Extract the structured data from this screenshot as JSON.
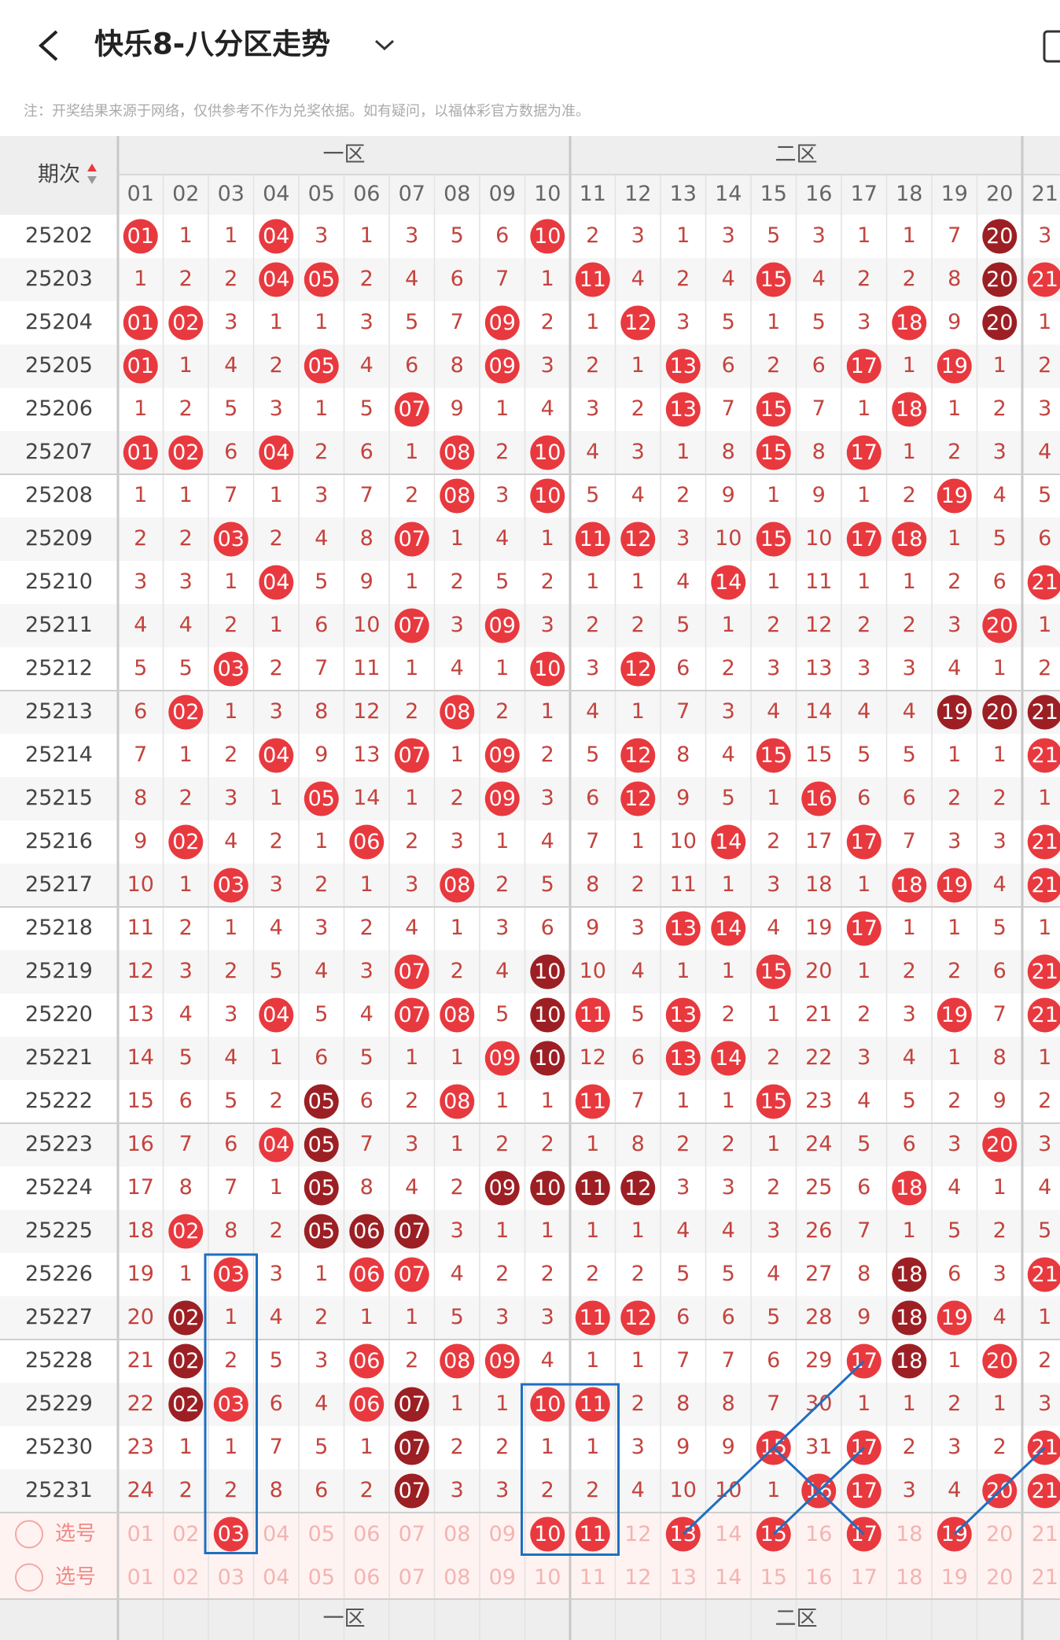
{
  "header": {
    "title": "快乐8-八分区走势",
    "note": "注：开奖结果来源于网络，仅供参考不作为兑奖依据。如有疑问，以福体彩官方数据为准。"
  },
  "table": {
    "issue_header": "期次",
    "zones": [
      "一区",
      "二区"
    ],
    "columns": [
      "01",
      "02",
      "03",
      "04",
      "05",
      "06",
      "07",
      "08",
      "09",
      "10",
      "11",
      "12",
      "13",
      "14",
      "15",
      "16",
      "17",
      "18",
      "19",
      "20",
      "21"
    ],
    "rows": [
      {
        "issue": "25202",
        "cells": [
          "01",
          "1",
          "1",
          "04",
          "3",
          "1",
          "3",
          "5",
          "6",
          "10",
          "2",
          "3",
          "1",
          "3",
          "5",
          "3",
          "1",
          "1",
          "7",
          "20",
          "3"
        ]
      },
      {
        "issue": "25203",
        "cells": [
          "1",
          "2",
          "2",
          "04",
          "05",
          "2",
          "4",
          "6",
          "7",
          "1",
          "11",
          "4",
          "2",
          "4",
          "15",
          "4",
          "2",
          "2",
          "8",
          "20",
          "21"
        ]
      },
      {
        "issue": "25204",
        "cells": [
          "01",
          "02",
          "3",
          "1",
          "1",
          "3",
          "5",
          "7",
          "09",
          "2",
          "1",
          "12",
          "3",
          "5",
          "1",
          "5",
          "3",
          "18",
          "9",
          "20",
          "1"
        ]
      },
      {
        "issue": "25205",
        "cells": [
          "01",
          "1",
          "4",
          "2",
          "05",
          "4",
          "6",
          "8",
          "09",
          "3",
          "2",
          "1",
          "13",
          "6",
          "2",
          "6",
          "17",
          "1",
          "19",
          "1",
          "2"
        ]
      },
      {
        "issue": "25206",
        "cells": [
          "1",
          "2",
          "5",
          "3",
          "1",
          "5",
          "07",
          "9",
          "1",
          "4",
          "3",
          "2",
          "13",
          "7",
          "15",
          "7",
          "1",
          "18",
          "1",
          "2",
          "3"
        ]
      },
      {
        "issue": "25207",
        "cells": [
          "01",
          "02",
          "6",
          "04",
          "2",
          "6",
          "1",
          "08",
          "2",
          "10",
          "4",
          "3",
          "1",
          "8",
          "15",
          "8",
          "17",
          "1",
          "2",
          "3",
          "4"
        ]
      },
      {
        "issue": "25208",
        "cells": [
          "1",
          "1",
          "7",
          "1",
          "3",
          "7",
          "2",
          "08",
          "3",
          "10",
          "5",
          "4",
          "2",
          "9",
          "1",
          "9",
          "1",
          "2",
          "19",
          "4",
          "5"
        ]
      },
      {
        "issue": "25209",
        "cells": [
          "2",
          "2",
          "03",
          "2",
          "4",
          "8",
          "07",
          "1",
          "4",
          "1",
          "11",
          "12",
          "3",
          "10",
          "15",
          "10",
          "17",
          "18",
          "1",
          "5",
          "6"
        ]
      },
      {
        "issue": "25210",
        "cells": [
          "3",
          "3",
          "1",
          "04",
          "5",
          "9",
          "1",
          "2",
          "5",
          "2",
          "1",
          "1",
          "4",
          "14",
          "1",
          "11",
          "1",
          "1",
          "2",
          "6",
          "21"
        ]
      },
      {
        "issue": "25211",
        "cells": [
          "4",
          "4",
          "2",
          "1",
          "6",
          "10",
          "07",
          "3",
          "09",
          "3",
          "2",
          "2",
          "5",
          "1",
          "2",
          "12",
          "2",
          "2",
          "3",
          "20",
          "1"
        ]
      },
      {
        "issue": "25212",
        "cells": [
          "5",
          "5",
          "03",
          "2",
          "7",
          "11",
          "1",
          "4",
          "1",
          "10",
          "3",
          "12",
          "6",
          "2",
          "3",
          "13",
          "3",
          "3",
          "4",
          "1",
          "2"
        ]
      },
      {
        "issue": "25213",
        "cells": [
          "6",
          "02",
          "1",
          "3",
          "8",
          "12",
          "2",
          "08",
          "2",
          "1",
          "4",
          "1",
          "7",
          "3",
          "4",
          "14",
          "4",
          "4",
          "19",
          "20",
          "21"
        ]
      },
      {
        "issue": "25214",
        "cells": [
          "7",
          "1",
          "2",
          "04",
          "9",
          "13",
          "07",
          "1",
          "09",
          "2",
          "5",
          "12",
          "8",
          "4",
          "15",
          "15",
          "5",
          "5",
          "1",
          "1",
          "21"
        ]
      },
      {
        "issue": "25215",
        "cells": [
          "8",
          "2",
          "3",
          "1",
          "05",
          "14",
          "1",
          "2",
          "09",
          "3",
          "6",
          "12",
          "9",
          "5",
          "1",
          "16",
          "6",
          "6",
          "2",
          "2",
          "1"
        ]
      },
      {
        "issue": "25216",
        "cells": [
          "9",
          "02",
          "4",
          "2",
          "1",
          "06",
          "2",
          "3",
          "1",
          "4",
          "7",
          "1",
          "10",
          "14",
          "2",
          "17",
          "17",
          "7",
          "3",
          "3",
          "21"
        ]
      },
      {
        "issue": "25217",
        "cells": [
          "10",
          "1",
          "03",
          "3",
          "2",
          "1",
          "3",
          "08",
          "2",
          "5",
          "8",
          "2",
          "11",
          "1",
          "3",
          "18",
          "1",
          "18",
          "19",
          "4",
          "21"
        ]
      },
      {
        "issue": "25218",
        "cells": [
          "11",
          "2",
          "1",
          "4",
          "3",
          "2",
          "4",
          "1",
          "3",
          "6",
          "9",
          "3",
          "13",
          "14",
          "4",
          "19",
          "17",
          "1",
          "1",
          "5",
          "1"
        ]
      },
      {
        "issue": "25219",
        "cells": [
          "12",
          "3",
          "2",
          "5",
          "4",
          "3",
          "07",
          "2",
          "4",
          "10",
          "10",
          "4",
          "1",
          "1",
          "15",
          "20",
          "1",
          "2",
          "2",
          "6",
          "21"
        ]
      },
      {
        "issue": "25220",
        "cells": [
          "13",
          "4",
          "3",
          "04",
          "5",
          "4",
          "07",
          "08",
          "5",
          "10",
          "11",
          "5",
          "13",
          "2",
          "1",
          "21",
          "2",
          "3",
          "19",
          "7",
          "21"
        ]
      },
      {
        "issue": "25221",
        "cells": [
          "14",
          "5",
          "4",
          "1",
          "6",
          "5",
          "1",
          "1",
          "09",
          "10",
          "12",
          "6",
          "13",
          "14",
          "2",
          "22",
          "3",
          "4",
          "1",
          "8",
          "1"
        ]
      },
      {
        "issue": "25222",
        "cells": [
          "15",
          "6",
          "5",
          "2",
          "05",
          "6",
          "2",
          "08",
          "1",
          "1",
          "11",
          "7",
          "1",
          "1",
          "15",
          "23",
          "4",
          "5",
          "2",
          "9",
          "2"
        ]
      },
      {
        "issue": "25223",
        "cells": [
          "16",
          "7",
          "6",
          "04",
          "05",
          "7",
          "3",
          "1",
          "2",
          "2",
          "1",
          "8",
          "2",
          "2",
          "1",
          "24",
          "5",
          "6",
          "3",
          "20",
          "3"
        ]
      },
      {
        "issue": "25224",
        "cells": [
          "17",
          "8",
          "7",
          "1",
          "05",
          "8",
          "4",
          "2",
          "09",
          "10",
          "11",
          "12",
          "3",
          "3",
          "2",
          "25",
          "6",
          "18",
          "4",
          "1",
          "4"
        ]
      },
      {
        "issue": "25225",
        "cells": [
          "18",
          "02",
          "8",
          "2",
          "05",
          "06",
          "07",
          "3",
          "1",
          "1",
          "1",
          "1",
          "4",
          "4",
          "3",
          "26",
          "7",
          "1",
          "5",
          "2",
          "5"
        ]
      },
      {
        "issue": "25226",
        "cells": [
          "19",
          "1",
          "03",
          "3",
          "1",
          "06",
          "07",
          "4",
          "2",
          "2",
          "2",
          "2",
          "5",
          "5",
          "4",
          "27",
          "8",
          "18",
          "6",
          "3",
          "21"
        ]
      },
      {
        "issue": "25227",
        "cells": [
          "20",
          "02",
          "1",
          "4",
          "2",
          "1",
          "1",
          "5",
          "3",
          "3",
          "11",
          "12",
          "6",
          "6",
          "5",
          "28",
          "9",
          "18",
          "19",
          "4",
          "1"
        ]
      },
      {
        "issue": "25228",
        "cells": [
          "21",
          "02",
          "2",
          "5",
          "3",
          "06",
          "2",
          "08",
          "09",
          "4",
          "1",
          "1",
          "7",
          "7",
          "6",
          "29",
          "17",
          "18",
          "1",
          "20",
          "2"
        ]
      },
      {
        "issue": "25229",
        "cells": [
          "22",
          "02",
          "03",
          "6",
          "4",
          "06",
          "07",
          "1",
          "1",
          "10",
          "11",
          "2",
          "8",
          "8",
          "7",
          "30",
          "1",
          "1",
          "2",
          "1",
          "3"
        ]
      },
      {
        "issue": "25230",
        "cells": [
          "23",
          "1",
          "1",
          "7",
          "5",
          "1",
          "07",
          "2",
          "2",
          "1",
          "1",
          "3",
          "9",
          "9",
          "15",
          "31",
          "17",
          "2",
          "3",
          "2",
          "21"
        ]
      },
      {
        "issue": "25231",
        "cells": [
          "24",
          "2",
          "2",
          "8",
          "6",
          "2",
          "07",
          "3",
          "3",
          "2",
          "2",
          "4",
          "10",
          "10",
          "1",
          "16",
          "17",
          "3",
          "4",
          "20",
          "21"
        ]
      }
    ],
    "selection_label": "选号",
    "picked": [
      "03",
      "10",
      "11",
      "13",
      "15",
      "17",
      "19"
    ],
    "colors": {
      "hit": "#e8393f",
      "streak": "#9c1f24",
      "miss": "#c4433d"
    }
  }
}
